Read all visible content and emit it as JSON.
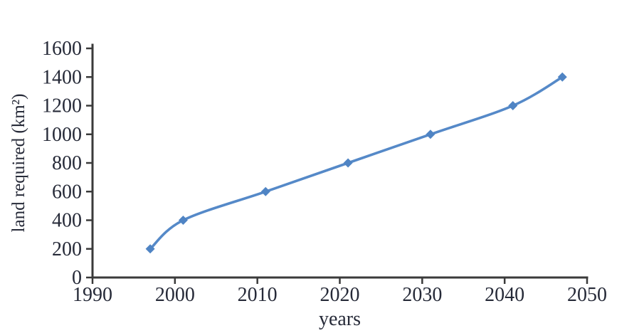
{
  "page": {
    "background_color": "#ffffff"
  },
  "chart_data": {
    "type": "line",
    "title": "",
    "xlabel": "years",
    "ylabel": "land required (km²)",
    "x": [
      1997,
      2001,
      2011,
      2021,
      2031,
      2041,
      2047
    ],
    "values": [
      200,
      400,
      600,
      800,
      1000,
      1200,
      1400
    ],
    "xlim": [
      1990,
      2050
    ],
    "ylim": [
      0,
      1600
    ],
    "x_ticks": [
      1990,
      2000,
      2010,
      2020,
      2030,
      2040,
      2050
    ],
    "y_ticks": [
      0,
      200,
      400,
      600,
      800,
      1000,
      1200,
      1400,
      1600
    ],
    "grid": false,
    "legend": false,
    "marker": "diamond",
    "line_color": "#5589c8",
    "marker_color": "#4f84c4",
    "axis_color": "#3a3a3a",
    "tick_label_color": "#262a38",
    "axis_label_color": "#262a38"
  }
}
